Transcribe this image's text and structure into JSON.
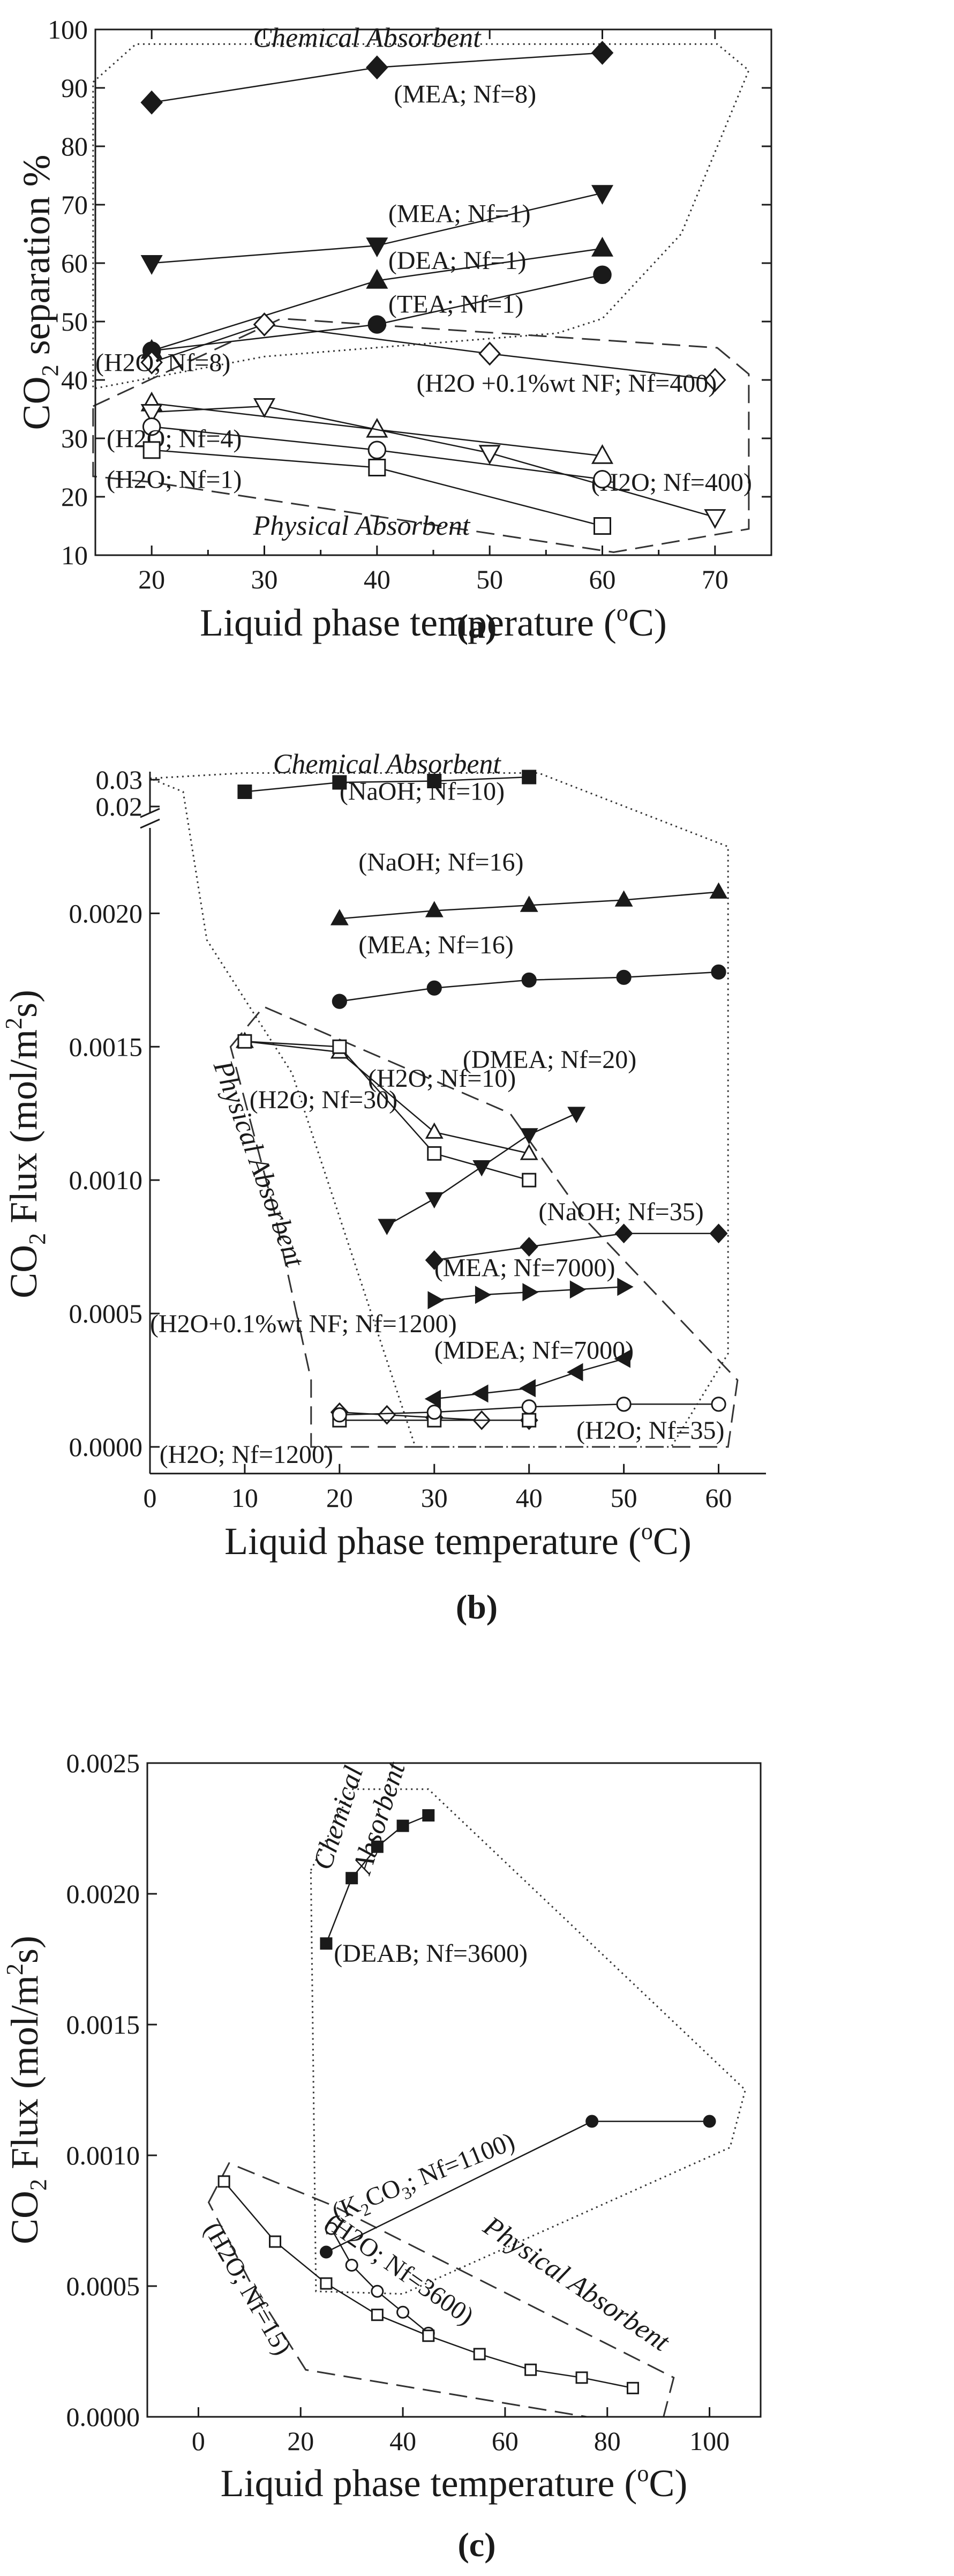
{
  "chart_data": [
    {
      "panel": "a",
      "caption": "(a)",
      "type": "line",
      "xlabel_main": "Liquid phase temperature (",
      "xlabel_sup": "o",
      "xlabel_end": "C)",
      "ylabel_co": "CO",
      "ylabel_sub": "2",
      "ylabel_end": " separation %",
      "xlim": [
        15,
        75
      ],
      "ylim": [
        10,
        100
      ],
      "xticks": [
        20,
        30,
        40,
        50,
        60,
        70
      ],
      "yticks": [
        10,
        20,
        30,
        40,
        50,
        60,
        70,
        80,
        90,
        100
      ],
      "regions": [
        {
          "label": "Chemical Absorbent",
          "style": "dotted",
          "polygon": [
            [
              14.8,
              91
            ],
            [
              18.6,
              97.5
            ],
            [
              70.2,
              97.5
            ],
            [
              73,
              93
            ],
            [
              67,
              65
            ],
            [
              60,
              50.5
            ],
            [
              56,
              48
            ],
            [
              30,
              44
            ],
            [
              14.8,
              38.5
            ]
          ],
          "label_pos": [
            29,
            97
          ]
        },
        {
          "label": "Physical Absorbent",
          "style": "dashed",
          "polygon": [
            [
              14.8,
              35.5
            ],
            [
              31.5,
              50.5
            ],
            [
              70.2,
              45.5
            ],
            [
              73,
              41
            ],
            [
              73,
              14.5
            ],
            [
              61,
              10.5
            ],
            [
              20,
              22.5
            ],
            [
              14.8,
              23.5
            ]
          ],
          "label_pos": [
            29,
            13.5
          ]
        }
      ],
      "series": [
        {
          "name": "MEA; Nf=8",
          "label": "(MEA; Nf=8)",
          "marker": "diamond",
          "filled": true,
          "x": [
            20,
            40,
            60
          ],
          "y": [
            87.5,
            93.5,
            96
          ],
          "label_pos": [
            41.5,
            87.5
          ]
        },
        {
          "name": "MEA; Nf=1",
          "label": "(MEA; Nf=1)",
          "marker": "triangle-down",
          "filled": true,
          "x": [
            20,
            40,
            60
          ],
          "y": [
            60,
            63,
            72
          ],
          "label_pos": [
            41,
            67
          ]
        },
        {
          "name": "DEA; Nf=1",
          "label": "(DEA; Nf=1)",
          "marker": "triangle-up",
          "filled": true,
          "x": [
            20,
            40,
            60
          ],
          "y": [
            45,
            57,
            62.5
          ],
          "label_pos": [
            41,
            59
          ]
        },
        {
          "name": "TEA; Nf=1",
          "label": "(TEA; Nf=1)",
          "marker": "circle",
          "filled": true,
          "x": [
            20,
            40,
            60
          ],
          "y": [
            45,
            49.5,
            58
          ],
          "label_pos": [
            41,
            51.5
          ]
        },
        {
          "name": "H2O +0.1%wt NF; Nf=400",
          "label": "(H2O +0.1%wt NF; Nf=400)",
          "marker": "diamond",
          "filled": false,
          "x": [
            20,
            30,
            50,
            70
          ],
          "y": [
            43,
            49.5,
            44.5,
            40
          ],
          "label_pos": [
            43.5,
            38
          ]
        },
        {
          "name": "H2O; Nf=8",
          "label": "(H2O; Nf=8)",
          "marker": "triangle-up",
          "filled": false,
          "x": [
            20,
            40,
            60
          ],
          "y": [
            36,
            31.5,
            27
          ],
          "label_pos": [
            15,
            41.5
          ]
        },
        {
          "name": "H2O; Nf=400",
          "label": "(H2O; Nf=400)",
          "marker": "triangle-down",
          "filled": false,
          "x": [
            20,
            30,
            50,
            70
          ],
          "y": [
            34.5,
            35.5,
            27.5,
            16.5
          ],
          "label_pos": [
            59,
            21
          ]
        },
        {
          "name": "H2O; Nf=4",
          "label": "(H2O; Nf=4)",
          "marker": "circle",
          "filled": false,
          "x": [
            20,
            40,
            60
          ],
          "y": [
            32,
            28,
            23
          ],
          "label_pos": [
            16,
            28.5
          ]
        },
        {
          "name": "H2O; Nf=1",
          "label": "(H2O; Nf=1)",
          "marker": "square",
          "filled": false,
          "x": [
            20,
            40,
            60
          ],
          "y": [
            28,
            25,
            15
          ],
          "label_pos": [
            16,
            21.5
          ]
        }
      ]
    },
    {
      "panel": "b",
      "caption": "(b)",
      "type": "line",
      "xlabel_main": "Liquid phase temperature (",
      "xlabel_sup": "o",
      "xlabel_end": "C)",
      "ylabel_co": "CO",
      "ylabel_sub": "2",
      "ylabel_mid": " Flux (mol/m",
      "ylabel_sup": "2",
      "ylabel_end": "s)",
      "xlim": [
        0,
        65
      ],
      "ylim": [
        -0.0001,
        0.0023
      ],
      "axis_break": "y-axis broken between 0.0023 and 0.02; upper segment shows 0.02 to 0.03",
      "upper_ylim": [
        0.02,
        0.033
      ],
      "xticks": [
        0,
        10,
        20,
        30,
        40,
        50,
        60
      ],
      "yticks": [
        0.0,
        0.0005,
        0.001,
        0.0015,
        0.002
      ],
      "ytick_labels": [
        "0.0000",
        "0.0005",
        "0.0010",
        "0.0015",
        "0.0020"
      ],
      "upper_yticks": [
        0.02,
        0.03
      ],
      "upper_ytick_labels": [
        "0.02",
        "0.03"
      ],
      "regions": [
        {
          "label": "Chemical Absorbent",
          "style": "dotted",
          "label_pos": [
            25,
            0.0325
          ]
        },
        {
          "label": "Physical Absorbent",
          "style": "dashed",
          "label_pos": [
            10,
            0.0013
          ]
        }
      ],
      "series": [
        {
          "name": "NaOH; Nf=10",
          "label": "(NaOH; Nf=10)",
          "marker": "square",
          "filled": true,
          "x": [
            10,
            20,
            30,
            40
          ],
          "y": [
            0.0255,
            0.029,
            0.0295,
            0.031
          ],
          "label_pos": [
            20,
            0.0225
          ]
        },
        {
          "name": "NaOH; Nf=16",
          "label": "(NaOH; Nf=16)",
          "marker": "triangle-up",
          "filled": true,
          "x": [
            20,
            30,
            40,
            50,
            60
          ],
          "y": [
            0.00198,
            0.00201,
            0.00203,
            0.00205,
            0.00208
          ],
          "label_pos": [
            22,
            0.00216
          ]
        },
        {
          "name": "MEA; Nf=16",
          "label": "(MEA; Nf=16)",
          "marker": "circle",
          "filled": true,
          "x": [
            20,
            30,
            40,
            50,
            60
          ],
          "y": [
            0.00167,
            0.00172,
            0.00175,
            0.00176,
            0.00178
          ],
          "label_pos": [
            22,
            0.00185
          ]
        },
        {
          "name": "H2O; Nf=30",
          "label": "(H2O; Nf=30)",
          "marker": "triangle-up",
          "filled": false,
          "x": [
            10,
            20,
            30,
            40
          ],
          "y": [
            0.00152,
            0.00148,
            0.00118,
            0.0011
          ],
          "label_pos": [
            10.5,
            0.00127
          ]
        },
        {
          "name": "H2O; Nf=10",
          "label": "(H2O; Nf=10)",
          "marker": "square",
          "filled": false,
          "x": [
            10,
            20,
            30,
            40
          ],
          "y": [
            0.00152,
            0.0015,
            0.0011,
            0.001
          ],
          "label_pos": [
            23,
            0.00135
          ]
        },
        {
          "name": "DMEA; Nf=20",
          "label": "(DMEA; Nf=20)",
          "marker": "triangle-down",
          "filled": true,
          "x": [
            25,
            30,
            35,
            40,
            45
          ],
          "y": [
            0.00083,
            0.00093,
            0.00105,
            0.00117,
            0.00125
          ],
          "label_pos": [
            33,
            0.00142
          ]
        },
        {
          "name": "NaOH; Nf=35",
          "label": "(NaOH; Nf=35)",
          "marker": "diamond",
          "filled": true,
          "x": [
            30,
            40,
            50,
            60
          ],
          "y": [
            0.0007,
            0.00075,
            0.0008,
            0.0008
          ],
          "label_pos": [
            41,
            0.00085
          ]
        },
        {
          "name": "MEA; Nf=7000",
          "label": "(MEA; Nf=7000)",
          "marker": "triangle-right",
          "filled": true,
          "x": [
            30,
            35,
            40,
            45,
            50
          ],
          "y": [
            0.00055,
            0.00057,
            0.00058,
            0.00059,
            0.0006
          ],
          "label_pos": [
            30,
            0.00064
          ]
        },
        {
          "name": "MDEA; Nf=7000",
          "label": "(MDEA; Nf=7000)",
          "marker": "triangle-left",
          "filled": true,
          "x": [
            30,
            35,
            40,
            45,
            50
          ],
          "y": [
            0.00018,
            0.0002,
            0.00022,
            0.00028,
            0.00033
          ],
          "label_pos": [
            30,
            0.00033
          ]
        },
        {
          "name": "H2O+0.1%wt NF; Nf=1200",
          "label": "(H2O+0.1%wt NF; Nf=1200)",
          "marker": "diamond",
          "filled": false,
          "x": [
            20,
            25,
            30,
            35,
            40
          ],
          "y": [
            0.00013,
            0.00012,
            0.00011,
            0.0001,
            0.0001
          ],
          "label_pos": [
            0,
            0.00043
          ]
        },
        {
          "name": "H2O; Nf=1200",
          "label": "(H2O; Nf=1200)",
          "marker": "square",
          "filled": false,
          "x": [
            20,
            30,
            40
          ],
          "y": [
            0.0001,
            0.0001,
            0.0001
          ],
          "label_pos": [
            1,
            -6e-05
          ]
        },
        {
          "name": "H2O; Nf=35",
          "label": "(H2O; Nf=35)",
          "marker": "circle",
          "filled": false,
          "x": [
            20,
            30,
            40,
            50,
            60
          ],
          "y": [
            0.00012,
            0.00013,
            0.00015,
            0.00016,
            0.00016
          ],
          "label_pos": [
            45,
            3e-05
          ]
        }
      ]
    },
    {
      "panel": "c",
      "caption": "(c)",
      "type": "line",
      "xlabel_main": "Liquid phase temperature (",
      "xlabel_sup": "o",
      "xlabel_end": "C)",
      "ylabel_co": "CO",
      "ylabel_sub": "2",
      "ylabel_mid": " Flux (mol/m",
      "ylabel_sup": "2",
      "ylabel_end": "s)",
      "xlim": [
        -10,
        110
      ],
      "ylim": [
        0.0,
        0.0025
      ],
      "xticks": [
        0,
        20,
        40,
        60,
        80,
        100
      ],
      "yticks": [
        0.0,
        0.0005,
        0.001,
        0.0015,
        0.002,
        0.0025
      ],
      "ytick_labels": [
        "0.0000",
        "0.0005",
        "0.0010",
        "0.0015",
        "0.0020",
        "0.0025"
      ],
      "regions": [
        {
          "label_line1": "Chemical",
          "label_line2": "Absorbent",
          "style": "dotted"
        },
        {
          "label": "Physical Absorbent",
          "style": "dashed"
        }
      ],
      "series": [
        {
          "name": "DEAB; Nf=3600",
          "label": "(DEAB; Nf=3600)",
          "marker": "square",
          "filled": true,
          "x": [
            25,
            30,
            35,
            40,
            45
          ],
          "y": [
            0.00181,
            0.00206,
            0.00218,
            0.00226,
            0.0023
          ],
          "label_pos": [
            26,
            0.00175
          ]
        },
        {
          "name": "K2CO3; Nf=1100",
          "label_pre": "(K",
          "label_sub": "2",
          "label_post": "CO",
          "label_sub2": "3",
          "label_end": "; Nf=1100)",
          "marker": "circle",
          "filled": true,
          "x": [
            25,
            77,
            100
          ],
          "y": [
            0.00063,
            0.00113,
            0.00113
          ],
          "label_pos": [
            27,
            0.00084
          ]
        },
        {
          "name": "H2O; Nf=3600",
          "label": "(H2O; Nf=3600)",
          "marker": "circle",
          "filled": false,
          "x": [
            26,
            30,
            35,
            40,
            45
          ],
          "y": [
            0.00072,
            0.00058,
            0.00048,
            0.0004,
            0.00032
          ]
        },
        {
          "name": "H2O; Nf=15",
          "label": "(H2O; Nf=15)",
          "marker": "square",
          "filled": false,
          "x": [
            5,
            15,
            25,
            35,
            45,
            55,
            65,
            75,
            85
          ],
          "y": [
            0.0009,
            0.00067,
            0.00051,
            0.00039,
            0.00031,
            0.00024,
            0.00018,
            0.00015,
            0.00011
          ]
        }
      ]
    }
  ]
}
